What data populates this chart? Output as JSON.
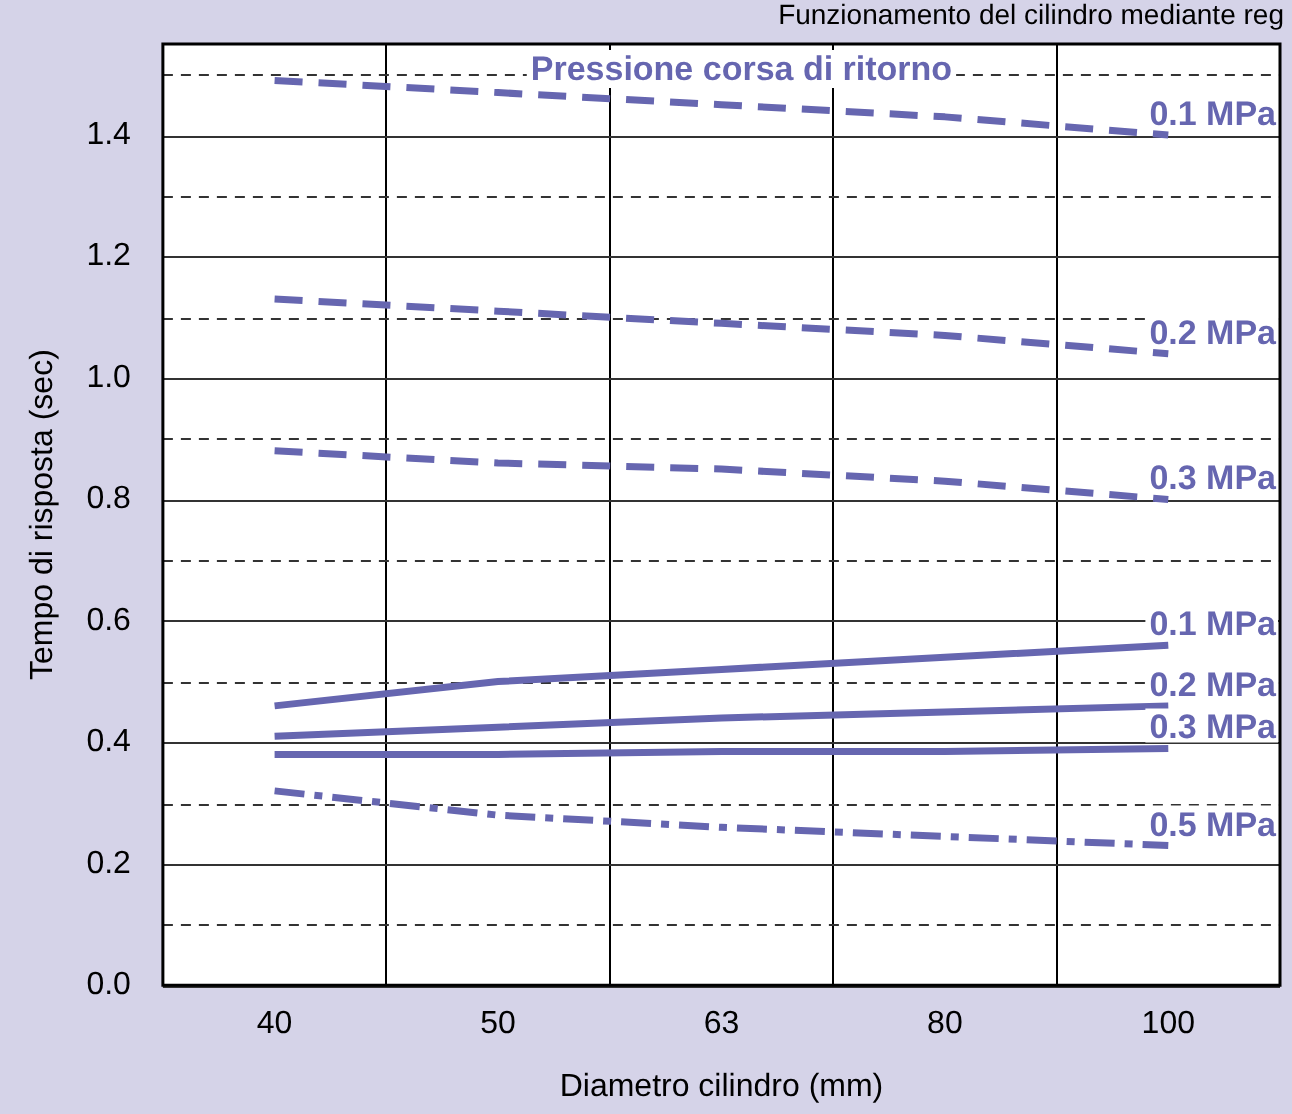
{
  "chart_data": {
    "type": "line",
    "title": "Funzionamento del cilindro mediante reg",
    "xlabel": "Diametro cilindro (mm)",
    "ylabel": "Tempo di risposta (sec)",
    "annotations": [
      "Pressione corsa di ritorno"
    ],
    "categories": [
      "40",
      "50",
      "63",
      "80",
      "100"
    ],
    "series": [
      {
        "name": "0.1 MPa",
        "color": "#6666b0",
        "line_style": "dashed",
        "values": [
          1.49,
          1.47,
          1.45,
          1.43,
          1.4
        ]
      },
      {
        "name": "0.2 MPa",
        "color": "#6666b0",
        "line_style": "dashed",
        "values": [
          1.13,
          1.11,
          1.09,
          1.07,
          1.04
        ]
      },
      {
        "name": "0.3 MPa",
        "color": "#6666b0",
        "line_style": "dashed",
        "values": [
          0.88,
          0.86,
          0.85,
          0.83,
          0.8
        ]
      },
      {
        "name": "0.1 MPa",
        "color": "#6666b0",
        "line_style": "solid",
        "values": [
          0.46,
          0.5,
          0.52,
          0.54,
          0.56
        ]
      },
      {
        "name": "0.2 MPa",
        "color": "#6666b0",
        "line_style": "solid",
        "values": [
          0.41,
          0.425,
          0.44,
          0.45,
          0.46
        ]
      },
      {
        "name": "0.3 MPa",
        "color": "#6666b0",
        "line_style": "solid",
        "values": [
          0.38,
          0.38,
          0.385,
          0.385,
          0.39
        ]
      },
      {
        "name": "0.5 MPa",
        "color": "#6666b0",
        "line_style": "dashdot",
        "values": [
          0.32,
          0.28,
          0.26,
          0.245,
          0.23
        ]
      }
    ],
    "ylim": [
      0,
      1.55
    ],
    "yticks": [
      "0.0",
      {
        "value": 0.1,
        "label": null
      },
      0.2,
      {
        "value": 0.3,
        "label": null
      },
      0.4,
      {
        "value": 0.5,
        "label": null
      },
      0.6,
      {
        "value": 0.7,
        "label": null
      },
      0.8,
      {
        "value": 0.9,
        "label": null
      },
      "1.0",
      {
        "value": 1.1,
        "label": null
      },
      1.2,
      {
        "value": 1.3,
        "label": null
      },
      1.4,
      {
        "value": 1.5,
        "label": null
      }
    ],
    "grid": true,
    "legend": false,
    "marker": "none"
  }
}
